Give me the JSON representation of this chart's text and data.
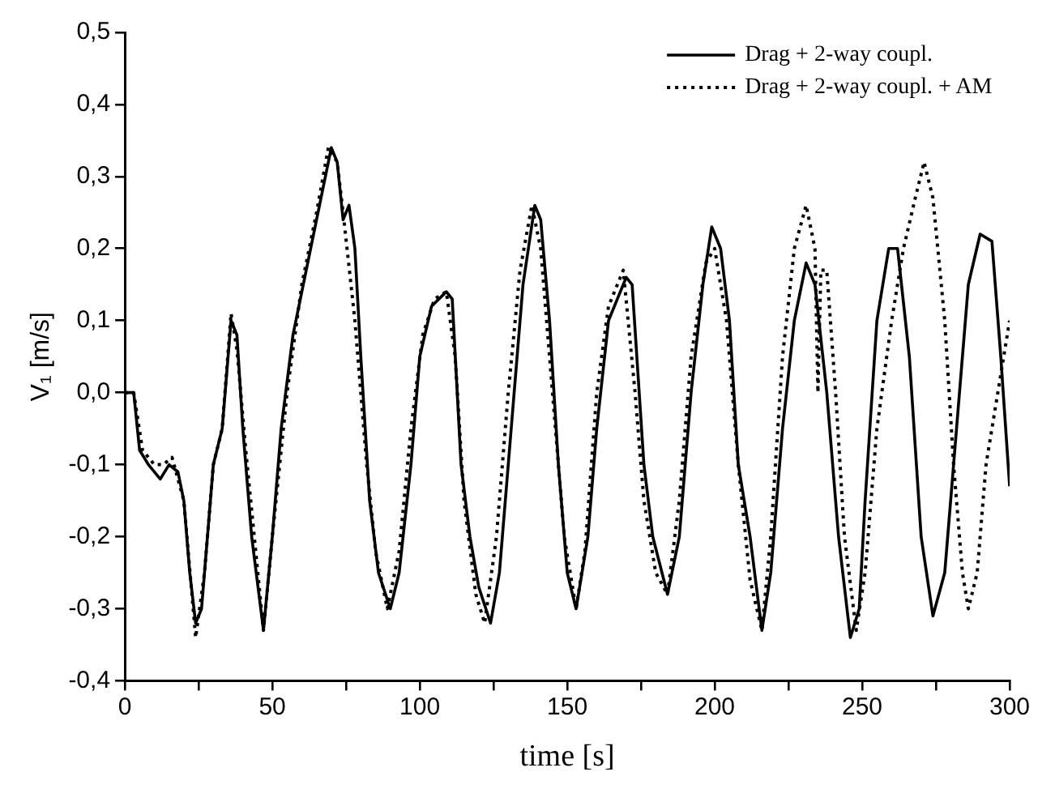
{
  "chart_data": {
    "type": "line",
    "xlabel": "time [s]",
    "ylabel": "V₁ [m/s]",
    "xlim": [
      0,
      300
    ],
    "ylim": [
      -0.4,
      0.5
    ],
    "xticks": [
      0,
      {
        "value": 25,
        "label": null
      },
      50,
      {
        "value": 75,
        "label": null
      },
      100,
      {
        "value": 125,
        "label": null
      },
      150,
      {
        "value": 175,
        "label": null
      },
      200,
      {
        "value": 225,
        "label": null
      },
      250,
      {
        "value": 275,
        "label": null
      },
      300
    ],
    "yticks": [
      {
        "value": -0.4,
        "label": "-0,4"
      },
      {
        "value": -0.3,
        "label": "-0,3"
      },
      {
        "value": -0.2,
        "label": "-0,2"
      },
      {
        "value": -0.1,
        "label": "-0,1"
      },
      {
        "value": 0,
        "label": "0,0"
      },
      {
        "value": 0.1,
        "label": "0,1"
      },
      {
        "value": 0.2,
        "label": "0,2"
      },
      {
        "value": 0.3,
        "label": "0,3"
      },
      {
        "value": 0.4,
        "label": "0,4"
      },
      {
        "value": 0.5,
        "label": "0,5"
      }
    ],
    "grid": false,
    "legend": "top right",
    "marker": "none",
    "series": [
      {
        "name": "Drag + 2-way coupl.",
        "color": "#000000",
        "line_style": "solid",
        "x": [
          0,
          3,
          5,
          8,
          12,
          15,
          18,
          20,
          22,
          24,
          26,
          28,
          30,
          33,
          36,
          38,
          40,
          43,
          47,
          50,
          53,
          57,
          62,
          67,
          70,
          72,
          74,
          76,
          78,
          80,
          83,
          86,
          90,
          93,
          97,
          100,
          104,
          109,
          111,
          114,
          117,
          120,
          124,
          127,
          131,
          135,
          139,
          141,
          144,
          147,
          150,
          153,
          157,
          160,
          164,
          170,
          172,
          176,
          179,
          184,
          188,
          192,
          196,
          199,
          202,
          205,
          208,
          212,
          216,
          219,
          223,
          227,
          231,
          234,
          238,
          242,
          246,
          249,
          251,
          255,
          259,
          262,
          266,
          270,
          274,
          278,
          282,
          286,
          290,
          294,
          297,
          300
        ],
        "values": [
          0.0,
          0.0,
          -0.08,
          -0.1,
          -0.12,
          -0.1,
          -0.11,
          -0.15,
          -0.25,
          -0.32,
          -0.3,
          -0.2,
          -0.1,
          -0.05,
          0.1,
          0.08,
          -0.05,
          -0.2,
          -0.33,
          -0.2,
          -0.05,
          0.08,
          0.18,
          0.28,
          0.34,
          0.32,
          0.24,
          0.26,
          0.2,
          0.05,
          -0.15,
          -0.25,
          -0.3,
          -0.25,
          -0.1,
          0.05,
          0.12,
          0.14,
          0.13,
          -0.1,
          -0.2,
          -0.27,
          -0.32,
          -0.25,
          -0.05,
          0.15,
          0.26,
          0.24,
          0.1,
          -0.1,
          -0.25,
          -0.3,
          -0.2,
          -0.05,
          0.1,
          0.16,
          0.15,
          -0.1,
          -0.2,
          -0.28,
          -0.2,
          0.0,
          0.15,
          0.23,
          0.2,
          0.1,
          -0.1,
          -0.2,
          -0.33,
          -0.25,
          -0.05,
          0.1,
          0.18,
          0.15,
          0.0,
          -0.2,
          -0.34,
          -0.3,
          -0.15,
          0.1,
          0.2,
          0.2,
          0.05,
          -0.2,
          -0.31,
          -0.25,
          -0.05,
          0.15,
          0.22,
          0.21,
          0.05,
          -0.13
        ]
      },
      {
        "name": "Drag + 2-way coupl. + AM",
        "color": "#000000",
        "line_style": "dotted",
        "x": [
          0,
          3,
          6,
          10,
          13,
          16,
          20,
          24,
          27,
          30,
          33,
          36,
          38,
          41,
          47,
          50,
          55,
          60,
          65,
          69,
          72,
          74,
          78,
          82,
          85,
          89,
          93,
          97,
          101,
          105,
          109,
          112,
          115,
          119,
          122,
          126,
          130,
          134,
          138,
          141,
          145,
          149,
          153,
          156,
          160,
          164,
          169,
          173,
          176,
          180,
          184,
          188,
          192,
          197,
          200,
          204,
          208,
          212,
          216,
          219,
          223,
          227,
          231,
          234,
          235,
          236,
          238,
          241,
          244,
          248,
          251,
          255,
          260,
          264,
          268,
          271,
          274,
          278,
          281,
          284,
          286,
          289,
          292,
          296,
          300
        ],
        "values": [
          0.0,
          0.0,
          -0.08,
          -0.1,
          -0.1,
          -0.09,
          -0.15,
          -0.34,
          -0.25,
          -0.1,
          -0.05,
          0.11,
          0.06,
          -0.08,
          -0.33,
          -0.2,
          0.0,
          0.15,
          0.25,
          0.34,
          0.32,
          0.25,
          0.1,
          -0.1,
          -0.22,
          -0.3,
          -0.22,
          -0.05,
          0.08,
          0.13,
          0.14,
          0.05,
          -0.15,
          -0.28,
          -0.32,
          -0.2,
          0.0,
          0.17,
          0.26,
          0.2,
          0.0,
          -0.2,
          -0.3,
          -0.22,
          0.0,
          0.12,
          0.17,
          0.0,
          -0.15,
          -0.25,
          -0.28,
          -0.15,
          0.05,
          0.18,
          0.2,
          0.1,
          -0.1,
          -0.26,
          -0.33,
          -0.2,
          0.05,
          0.2,
          0.26,
          0.2,
          0.0,
          0.17,
          0.17,
          0.0,
          -0.2,
          -0.33,
          -0.25,
          -0.05,
          0.1,
          0.2,
          0.27,
          0.32,
          0.27,
          0.1,
          -0.1,
          -0.25,
          -0.3,
          -0.25,
          -0.1,
          0.0,
          0.1
        ]
      }
    ]
  }
}
